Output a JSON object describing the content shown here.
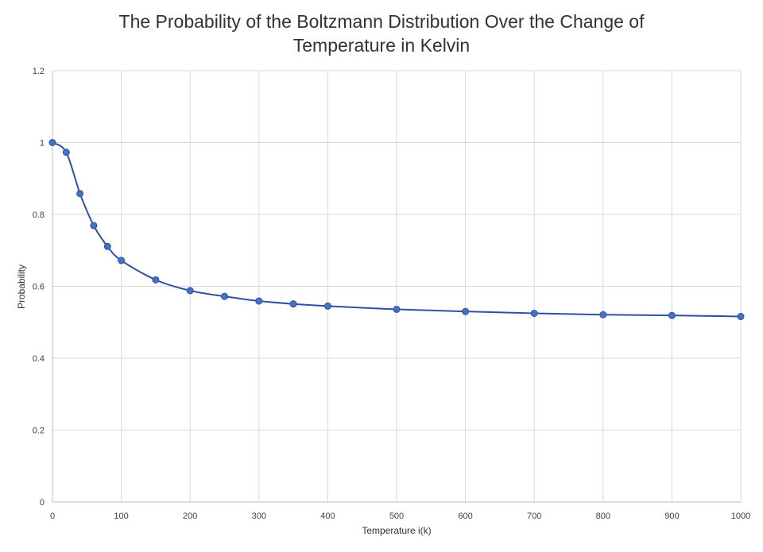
{
  "chart_data": {
    "type": "line",
    "title_lines": [
      "The Probability of the Boltzmann Distribution Over the Change of",
      "Temperature in Kelvin"
    ],
    "xlabel": "Temperature i(k)",
    "ylabel": "Probability",
    "xlim": [
      0,
      1000
    ],
    "ylim": [
      0,
      1.2
    ],
    "x_ticks": [
      0,
      100,
      200,
      300,
      400,
      500,
      600,
      700,
      800,
      900,
      1000
    ],
    "y_ticks": [
      0,
      0.2,
      0.4,
      0.6,
      0.8,
      1,
      1.2
    ],
    "x_tick_labels": [
      "0",
      "100",
      "200",
      "300",
      "400",
      "500",
      "600",
      "700",
      "800",
      "900",
      "1000"
    ],
    "y_tick_labels": [
      "0",
      "0.2",
      "0.4",
      "0.6",
      "0.8",
      "1",
      "1.2"
    ],
    "grid": true,
    "legend": false,
    "series": [
      {
        "name": "Probability",
        "color": "#2f4f9f",
        "marker_color": "#4472c4",
        "x": [
          0,
          20,
          40,
          60,
          80,
          100,
          150,
          200,
          250,
          300,
          350,
          400,
          500,
          600,
          700,
          800,
          900,
          1000
        ],
        "y": [
          1.0,
          0.973,
          0.858,
          0.769,
          0.711,
          0.672,
          0.618,
          0.588,
          0.572,
          0.559,
          0.551,
          0.545,
          0.536,
          0.53,
          0.525,
          0.521,
          0.519,
          0.516
        ]
      }
    ]
  },
  "colors": {
    "background": "#ffffff",
    "grid": "#d9d9d9",
    "axis": "#bfbfbf",
    "text": "#404040"
  }
}
